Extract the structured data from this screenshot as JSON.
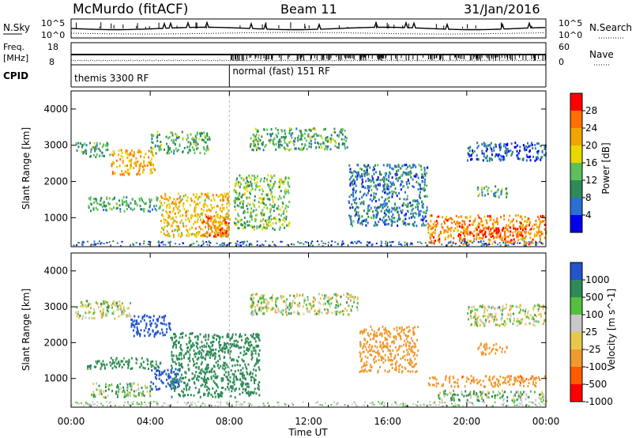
{
  "header": {
    "station": "McMurdo (fitACF)",
    "beam": "Beam 11",
    "date": "31/Jan/2016"
  },
  "time_axis": {
    "title": "Time UT",
    "ticks": [
      "00:00",
      "04:00",
      "08:00",
      "12:00",
      "16:00",
      "20:00",
      "00:00"
    ],
    "range_hours": [
      0,
      24
    ]
  },
  "strips": {
    "nsky_label": "N.Sky",
    "nsky_ticks": [
      "10^5",
      "10^0"
    ],
    "nsearch_label": "N.Search",
    "nsearch_ticks": [
      "10^5",
      "10^0"
    ],
    "freq_label": "Freq.",
    "freq_unit": "[MHz]",
    "freq_ticks": [
      "18",
      "8"
    ],
    "nave_label": "Nave",
    "nave_ticks": [
      "60",
      "0"
    ],
    "cpid_label": "CPID",
    "modes": [
      {
        "label": "themis 3300 RF",
        "start_hour": 0
      },
      {
        "label": "normal (fast) 151 RF",
        "start_hour": 8
      }
    ]
  },
  "colors": {
    "power_scale": [
      "#0000ee",
      "#2a6fd2",
      "#2e8b57",
      "#5dbf5d",
      "#e6d800",
      "#f0a500",
      "#ff7000",
      "#ff0000"
    ],
    "velocity_scale": [
      "#ff0000",
      "#ff5a00",
      "#f09a30",
      "#e8c84a",
      "#c8c8c8",
      "#55c040",
      "#2e8b57",
      "#2255cc"
    ]
  },
  "chart_data": [
    {
      "type": "heatmap",
      "name": "power",
      "ylabel": "Slant Range [km]",
      "yticks": [
        "1000",
        "2000",
        "3000",
        "4000"
      ],
      "ylim": [
        200,
        4500
      ],
      "xlabel": "Time UT",
      "xlim_hours": [
        0,
        24
      ],
      "colorbar": {
        "label": "Power [dB]",
        "ticks": [
          "28",
          "24",
          "20",
          "16",
          "12",
          "8",
          "4"
        ],
        "range": [
          0,
          32
        ]
      },
      "regions": [
        {
          "t": [
            0.2,
            2.0
          ],
          "r": [
            2700,
            3100
          ],
          "level": 12
        },
        {
          "t": [
            2.0,
            4.2
          ],
          "r": [
            2200,
            2900
          ],
          "level": 22
        },
        {
          "t": [
            4.0,
            7.0
          ],
          "r": [
            2800,
            3400
          ],
          "level": 12
        },
        {
          "t": [
            0.8,
            4.5
          ],
          "r": [
            1200,
            1600
          ],
          "level": 12
        },
        {
          "t": [
            4.5,
            8.0
          ],
          "r": [
            500,
            1700
          ],
          "level": 20
        },
        {
          "t": [
            6.5,
            8.0
          ],
          "r": [
            500,
            1100
          ],
          "level": 26
        },
        {
          "t": [
            8.2,
            11.0
          ],
          "r": [
            700,
            2200
          ],
          "level": 14
        },
        {
          "t": [
            9.0,
            14.0
          ],
          "r": [
            2900,
            3500
          ],
          "level": 12
        },
        {
          "t": [
            14.0,
            18.0
          ],
          "r": [
            800,
            2500
          ],
          "level": 8
        },
        {
          "t": [
            18.0,
            24.0
          ],
          "r": [
            300,
            1100
          ],
          "level": 24
        },
        {
          "t": [
            19.5,
            23.0
          ],
          "r": [
            500,
            800
          ],
          "level": 28
        },
        {
          "t": [
            20.5,
            22.0
          ],
          "r": [
            1600,
            1900
          ],
          "level": 12
        },
        {
          "t": [
            20.0,
            24.0
          ],
          "r": [
            2600,
            3100
          ],
          "level": 6
        }
      ]
    },
    {
      "type": "heatmap",
      "name": "velocity",
      "ylabel": "Slant Range [km]",
      "yticks": [
        "1000",
        "2000",
        "3000",
        "4000"
      ],
      "ylim": [
        200,
        4500
      ],
      "xlabel": "Time UT",
      "xlim_hours": [
        0,
        24
      ],
      "colorbar": {
        "label": "Velocity [m s^-1]",
        "ticks": [
          "1000",
          "500",
          "100",
          "25",
          "-25",
          "-100",
          "-500",
          "-1000"
        ],
        "range": [
          -1200,
          1200
        ]
      },
      "regions": [
        {
          "t": [
            0.2,
            3.0
          ],
          "r": [
            2700,
            3200
          ],
          "value": 0
        },
        {
          "t": [
            3.0,
            5.0
          ],
          "r": [
            2200,
            2800
          ],
          "value": 800
        },
        {
          "t": [
            0.8,
            4.5
          ],
          "r": [
            1300,
            1600
          ],
          "value": 200
        },
        {
          "t": [
            4.0,
            5.5
          ],
          "r": [
            700,
            1300
          ],
          "value": 900
        },
        {
          "t": [
            5.0,
            9.5
          ],
          "r": [
            500,
            2300
          ],
          "value": 300
        },
        {
          "t": [
            1.0,
            4.0
          ],
          "r": [
            500,
            900
          ],
          "value": 60
        },
        {
          "t": [
            9.0,
            14.5
          ],
          "r": [
            2800,
            3400
          ],
          "value": 0
        },
        {
          "t": [
            14.5,
            17.5
          ],
          "r": [
            1200,
            2500
          ],
          "value": -300
        },
        {
          "t": [
            18.0,
            24.0
          ],
          "r": [
            800,
            1100
          ],
          "value": -400
        },
        {
          "t": [
            18.5,
            24.0
          ],
          "r": [
            400,
            700
          ],
          "value": 60
        },
        {
          "t": [
            20.5,
            22.0
          ],
          "r": [
            1700,
            2000
          ],
          "value": -300
        },
        {
          "t": [
            20.0,
            24.0
          ],
          "r": [
            2500,
            3100
          ],
          "value": 0
        }
      ]
    }
  ]
}
